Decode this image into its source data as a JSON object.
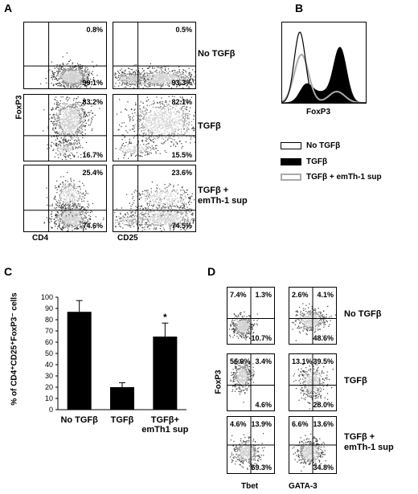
{
  "panels": {
    "A": {
      "letter": "A",
      "y_label": "FoxP3",
      "x_labels": [
        "CD4",
        "CD25"
      ],
      "rows": [
        {
          "condition": "No TGFβ",
          "condition_lines": [
            "No TGFβ"
          ],
          "cd4": {
            "top": "0.8%",
            "bottom": "99.1%"
          },
          "cd25": {
            "top": "0.5%",
            "bottom": "93.3%"
          }
        },
        {
          "condition": "TGFβ",
          "condition_lines": [
            "TGFβ"
          ],
          "cd4": {
            "top": "83.2%",
            "bottom": "16.7%"
          },
          "cd25": {
            "top": "82.1%",
            "bottom": "15.5%"
          }
        },
        {
          "condition": "TGFβ + emTh-1 sup",
          "condition_lines": [
            "TGFβ +",
            "emTh-1 sup"
          ],
          "cd4": {
            "top": "25.4%",
            "bottom": "74.6%"
          },
          "cd25": {
            "top": "23.6%",
            "bottom": "74.5%"
          }
        }
      ]
    },
    "B": {
      "letter": "B",
      "x_label": "FoxP3",
      "legend": [
        {
          "label": "No TGFβ",
          "style": "open-black"
        },
        {
          "label": "TGFβ",
          "style": "filled-black"
        },
        {
          "label": "TGFβ + emTh-1 sup",
          "style": "open-gray"
        }
      ]
    },
    "C": {
      "letter": "C"
    },
    "D": {
      "letter": "D",
      "y_label": "FoxP3",
      "x_labels": [
        "Tbet",
        "GATA-3"
      ],
      "rows": [
        {
          "condition_lines": [
            "No TGFβ"
          ],
          "tbet": {
            "tl": "7.4%",
            "tr": "1.3%",
            "br": "10.7%"
          },
          "gata3": {
            "tl": "2.6%",
            "tr": "4.1%",
            "br": "48.6%"
          }
        },
        {
          "condition_lines": [
            "TGFβ"
          ],
          "tbet": {
            "tl": "56.9%",
            "tr": "3.4%",
            "br": "4.6%"
          },
          "gata3": {
            "tl": "13.1%",
            "tr": "39.5%",
            "br": "28.0%"
          }
        },
        {
          "condition_lines": [
            "TGFβ +",
            "emTh-1 sup"
          ],
          "tbet": {
            "tl": "4.6%",
            "tr": "13.9%",
            "br": "69.3%"
          },
          "gata3": {
            "tl": "6.6%",
            "tr": "13.6%",
            "br": "34.8%"
          }
        }
      ]
    }
  },
  "chart_data": {
    "type": "bar",
    "ylabel": "% of CD4⁺CD25⁺FoxP3⁻ cells",
    "ylim": [
      0,
      100
    ],
    "yticks": [
      0,
      10,
      20,
      30,
      40,
      50,
      60,
      70,
      80,
      90,
      100
    ],
    "categories": [
      "No TGFβ",
      "TGFβ",
      "TGFβ+ emTh1 sup"
    ],
    "category_lines": [
      [
        "No TGFβ"
      ],
      [
        "TGFβ"
      ],
      [
        "TGFβ+",
        "emTh1 sup"
      ]
    ],
    "values": [
      87,
      20,
      65
    ],
    "errors": [
      10,
      4,
      12
    ],
    "annotations": [
      "",
      "",
      "*"
    ],
    "bar_color": "#000000"
  }
}
